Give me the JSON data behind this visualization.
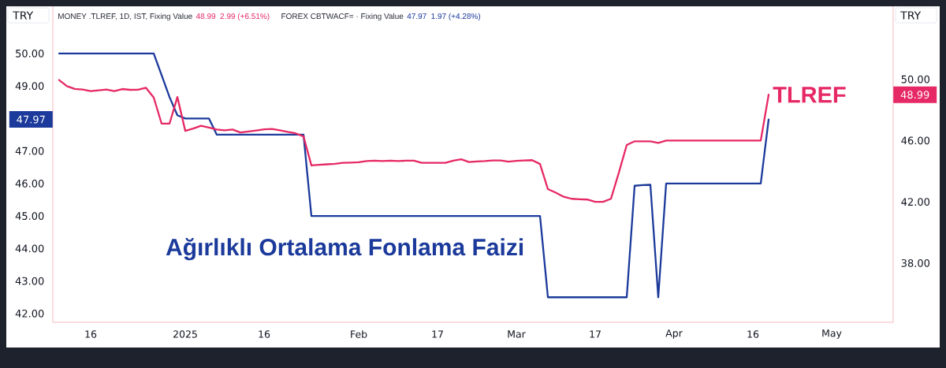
{
  "chart_data": {
    "type": "line",
    "ylabel": "TRY",
    "y2label": "TRY",
    "annotations": [
      "MONEY .TLREF, 1D, IST, Fixing Value",
      "48.99",
      "2.99 (+6.51%)",
      "FOREX CBTWACF= · Fixing Value",
      "47.97",
      "1.97 (+4.28%)",
      "48.99",
      "47.97"
    ],
    "categories": [
      null,
      null,
      null,
      null,
      "16",
      null,
      null,
      null,
      null,
      null,
      null,
      null,
      null,
      null,
      null,
      null,
      "2025",
      null,
      null,
      null,
      null,
      null,
      null,
      null,
      null,
      null,
      "16",
      null,
      null,
      null,
      null,
      null,
      null,
      null,
      null,
      null,
      null,
      null,
      "Feb",
      null,
      null,
      null,
      null,
      null,
      null,
      null,
      null,
      null,
      "17",
      null,
      null,
      null,
      null,
      null,
      null,
      null,
      null,
      null,
      "Mar",
      null,
      null,
      null,
      null,
      null,
      null,
      null,
      null,
      null,
      "17",
      null,
      null,
      null,
      null,
      null,
      null,
      null,
      null,
      null,
      "Apr",
      null,
      null,
      null,
      null,
      null,
      null,
      null,
      null,
      null,
      "16",
      null,
      null,
      null,
      null,
      null,
      null,
      null,
      null,
      null,
      "May",
      null,
      null,
      null,
      null,
      null,
      null,
      null
    ],
    "series": [
      {
        "name": "TLREF",
        "color": "#e62864",
        "axis": "y2",
        "values": [
          49.95,
          49.55,
          49.37,
          49.33,
          49.23,
          49.28,
          49.33,
          49.23,
          49.36,
          49.31,
          49.32,
          49.45,
          48.81,
          47.1,
          47.1,
          48.84,
          46.63,
          46.78,
          46.96,
          46.85,
          46.72,
          46.67,
          46.72,
          46.53,
          46.59,
          46.66,
          46.73,
          46.76,
          46.67,
          46.56,
          46.47,
          46.27,
          44.38,
          44.42,
          44.45,
          44.48,
          44.55,
          44.56,
          44.58,
          44.66,
          44.69,
          44.66,
          44.69,
          44.66,
          44.69,
          44.69,
          44.55,
          44.55,
          44.55,
          44.55,
          44.69,
          44.78,
          44.6,
          44.64,
          44.66,
          44.7,
          44.7,
          44.62,
          44.68,
          44.7,
          44.72,
          44.47,
          42.83,
          42.6,
          42.33,
          42.2,
          42.17,
          42.15,
          42.0,
          42.0,
          42.2,
          43.9,
          45.71,
          45.95,
          45.95,
          45.95,
          45.85,
          46.0,
          46.0,
          46.0,
          46.0,
          46.0,
          46.0,
          46.0,
          46.0,
          46.0,
          46.0,
          46.0,
          46.0,
          46.0,
          48.99,
          null,
          null,
          null,
          null,
          null,
          null,
          null,
          null,
          null,
          null,
          null,
          null,
          null,
          null,
          null
        ]
      },
      {
        "name": "Ağırlıklı Ortalama Fonlama Faizi",
        "color": "#1b3a9b",
        "values": [
          50.0,
          50.0,
          50.0,
          50.0,
          50.0,
          50.0,
          50.0,
          50.0,
          50.0,
          50.0,
          50.0,
          50.0,
          50.0,
          49.33,
          48.66,
          48.1,
          48.0,
          48.0,
          48.0,
          48.0,
          47.5,
          47.5,
          47.5,
          47.5,
          47.5,
          47.5,
          47.5,
          47.5,
          47.5,
          47.5,
          47.5,
          47.5,
          45.0,
          45.0,
          45.0,
          45.0,
          45.0,
          45.0,
          45.0,
          45.0,
          45.0,
          45.0,
          45.0,
          45.0,
          45.0,
          45.0,
          45.0,
          45.0,
          45.0,
          45.0,
          45.0,
          45.0,
          45.0,
          45.0,
          45.0,
          45.0,
          45.0,
          45.0,
          45.0,
          45.0,
          45.0,
          45.0,
          42.5,
          42.5,
          42.5,
          42.5,
          42.5,
          42.5,
          42.5,
          42.5,
          42.5,
          42.5,
          42.5,
          45.93,
          45.95,
          45.96,
          42.5,
          46.0,
          46.0,
          46.0,
          46.0,
          46.0,
          46.0,
          46.0,
          46.0,
          46.0,
          46.0,
          46.0,
          46.0,
          46.0,
          47.97,
          null,
          null,
          null,
          null,
          null,
          null,
          null,
          null,
          null,
          null,
          null,
          null,
          null,
          null,
          null
        ]
      }
    ],
    "ylim": [
      41.73,
      51.45
    ],
    "yticks": [
      {
        "value": 42,
        "label": "42.00"
      },
      {
        "value": 43,
        "label": "43.00"
      },
      {
        "value": 44,
        "label": "44.00"
      },
      {
        "value": 45,
        "label": "45.00"
      },
      {
        "value": 46,
        "label": "46.00"
      },
      {
        "value": 47,
        "label": "47.00"
      },
      {
        "value": 49,
        "label": "49.00"
      },
      {
        "value": 50,
        "label": "50.00"
      }
    ],
    "y2lim": [
      34.14,
      54.76
    ],
    "y2ticks": [
      {
        "value": 38,
        "label": "38.00"
      },
      {
        "value": 42,
        "label": "42.00"
      },
      {
        "value": 46,
        "label": "46.00"
      },
      {
        "value": 50,
        "label": "50.00"
      }
    ]
  }
}
